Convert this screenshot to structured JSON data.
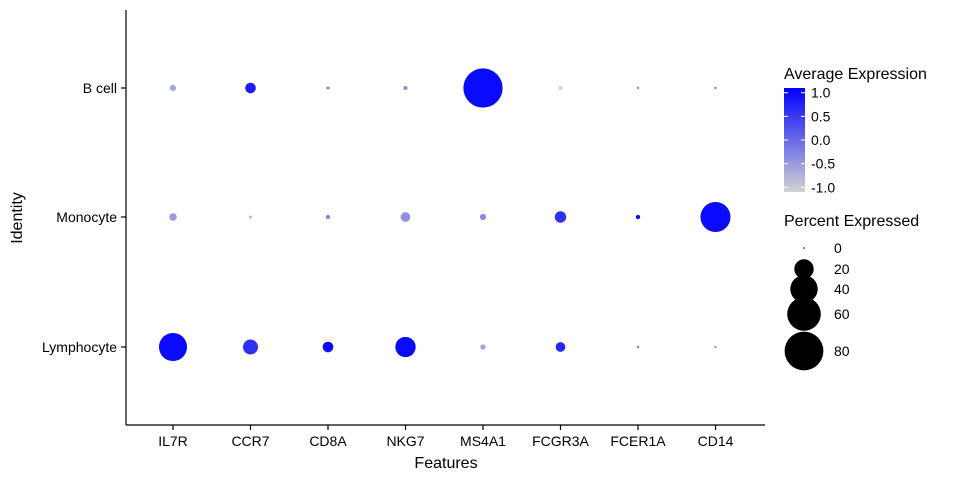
{
  "chart_data": {
    "type": "dotplot",
    "xlabel": "Features",
    "ylabel": "Identity",
    "categories": [
      "IL7R",
      "CCR7",
      "CD8A",
      "NKG7",
      "MS4A1",
      "FCGR3A",
      "FCER1A",
      "CD14"
    ],
    "identities": [
      "B cell",
      "Monocyte",
      "Lymphocyte"
    ],
    "series": [
      {
        "name": "B cell",
        "avg_expression": [
          -0.6,
          0.8,
          -0.2,
          -0.4,
          1.0,
          -1.1,
          -0.3,
          -0.2
        ],
        "pct_expressed": [
          2,
          6,
          0.5,
          1,
          82,
          1,
          0.3,
          0.3
        ]
      },
      {
        "name": "Monocyte",
        "avg_expression": [
          -0.5,
          -0.8,
          -0.3,
          -0.4,
          -0.3,
          0.6,
          1.0,
          1.0
        ],
        "pct_expressed": [
          3,
          0.5,
          1,
          5,
          2,
          7,
          1,
          48
        ]
      },
      {
        "name": "Lymphocyte",
        "avg_expression": [
          1.0,
          0.6,
          1.0,
          1.0,
          -0.6,
          0.7,
          -0.2,
          -0.4
        ],
        "pct_expressed": [
          42,
          12,
          6,
          22,
          1.5,
          5,
          0.3,
          0.3
        ]
      }
    ],
    "grid": false,
    "legend_position": "right",
    "color_legend": {
      "title": "Average Expression",
      "ticks": [
        "1.0",
        "0.5",
        "0.0",
        "-0.5",
        "-1.0"
      ],
      "tick_values": [
        1.0,
        0.5,
        0.0,
        -0.5,
        -1.0
      ],
      "range": [
        -1.1,
        1.1
      ],
      "low_color": "#d3d3d3",
      "high_color": "#0000ff"
    },
    "size_legend": {
      "title": "Percent Expressed",
      "labels": [
        "0",
        "20",
        "40",
        "60",
        "80"
      ],
      "values": [
        0,
        20,
        40,
        60,
        80
      ]
    }
  }
}
